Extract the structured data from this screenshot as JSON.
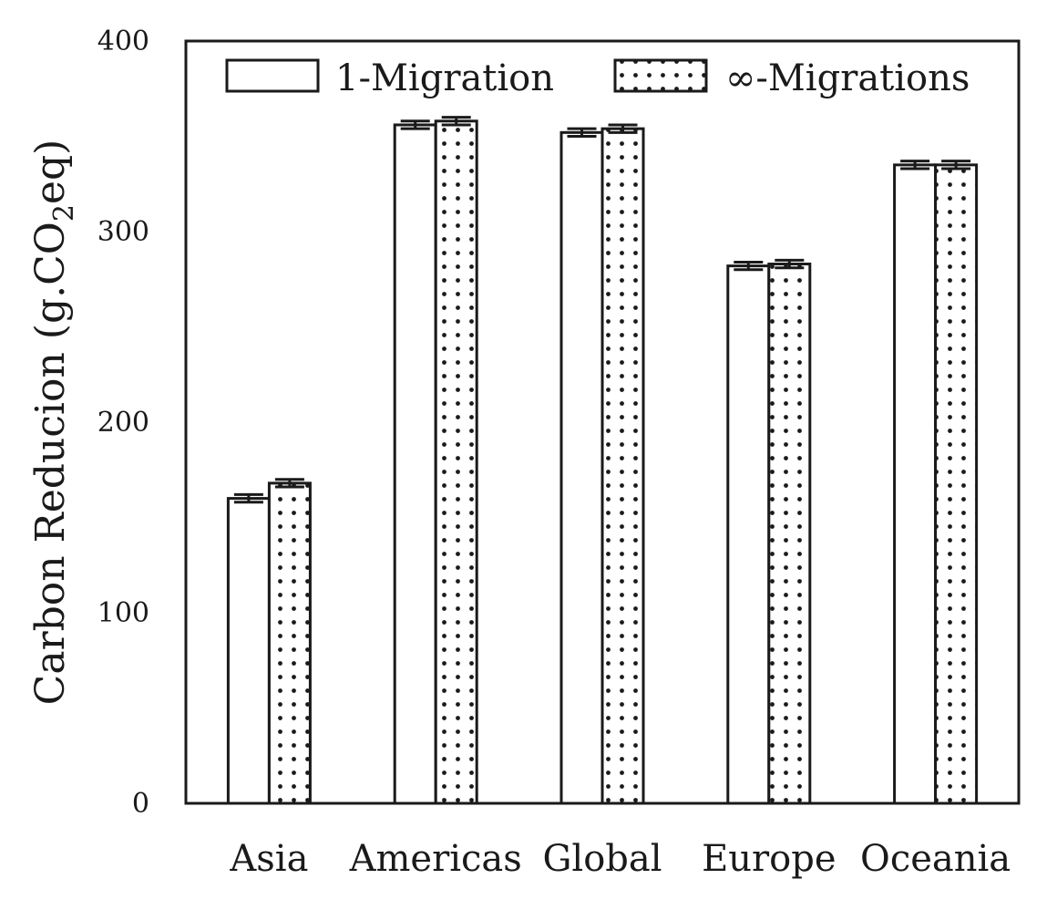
{
  "chart_data": {
    "type": "bar",
    "title": "",
    "xlabel": "",
    "ylabel": "Carbon Reducion (g.CO",
    "ylabel_subscript": "2",
    "ylabel_suffix": "eq)",
    "ylim": [
      0,
      400
    ],
    "yticks": [
      "0",
      "100",
      "200",
      "300",
      "400"
    ],
    "categories": [
      "Asia",
      "Americas",
      "Global",
      "Europe",
      "Oceania"
    ],
    "series": [
      {
        "name": "1-Migration",
        "pattern": "plain",
        "values": [
          160,
          356,
          352,
          282,
          335
        ],
        "errors": [
          2,
          2,
          2,
          2,
          2
        ]
      },
      {
        "name": "∞-Migrations",
        "pattern": "dots",
        "values": [
          168,
          358,
          354,
          283,
          335
        ],
        "errors": [
          2,
          2,
          2,
          2,
          2
        ]
      }
    ],
    "legend": "top",
    "grid": false,
    "colors": {
      "edge": "#1a1a1a",
      "fill": "#ffffff",
      "dot": "#1a1a1a"
    }
  }
}
